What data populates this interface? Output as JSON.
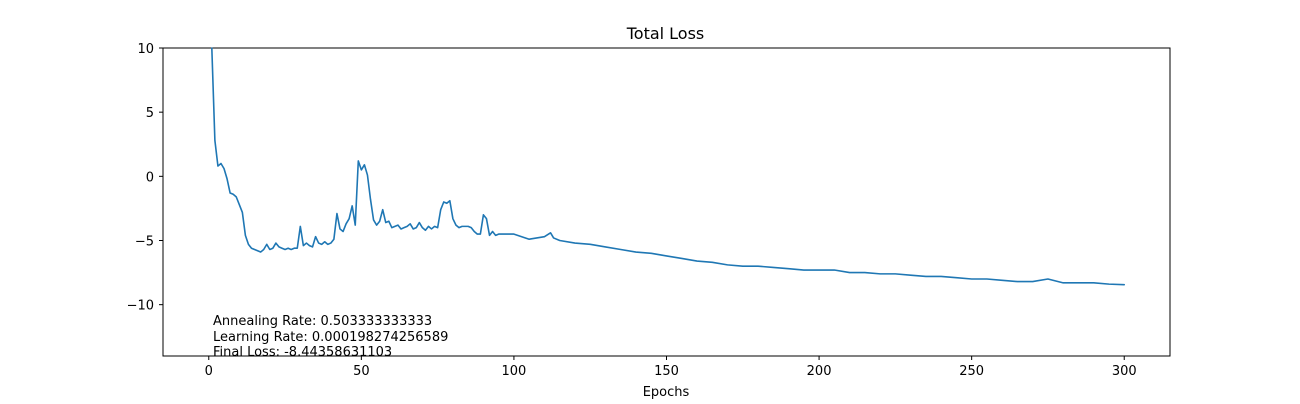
{
  "chart_data": {
    "type": "line",
    "title": "Total Loss",
    "xlabel": "Epochs",
    "ylabel": "",
    "xlim": [
      -15,
      315
    ],
    "ylim": [
      -14,
      10
    ],
    "xticks": [
      0,
      50,
      100,
      150,
      200,
      250,
      300
    ],
    "yticks": [
      -10,
      -5,
      0,
      5,
      10
    ],
    "grid": false,
    "line_color": "#1f77b4",
    "annotations": [
      "Annealing Rate: 0.503333333333",
      "Learning Rate: 0.000198274256589",
      "Final Loss: -8.44358631103"
    ],
    "series": [
      {
        "x": [
          1,
          2,
          3,
          4,
          5,
          6,
          7,
          8,
          9,
          10,
          11,
          12,
          13,
          14,
          15,
          16,
          17,
          18,
          19,
          20,
          21,
          22,
          23,
          24,
          25,
          26,
          27,
          28,
          29,
          30,
          31,
          32,
          33,
          34,
          35,
          36,
          37,
          38,
          39,
          40,
          41,
          42,
          43,
          44,
          45,
          46,
          47,
          48,
          49,
          50,
          51,
          52,
          53,
          54,
          55,
          56,
          57,
          58,
          59,
          60,
          61,
          62,
          63,
          64,
          65,
          66,
          67,
          68,
          69,
          70,
          71,
          72,
          73,
          74,
          75,
          76,
          77,
          78,
          79,
          80,
          81,
          82,
          83,
          84,
          85,
          86,
          87,
          88,
          89,
          90,
          91,
          92,
          93,
          94,
          95,
          100,
          105,
          110,
          112,
          113,
          115,
          120,
          125,
          130,
          135,
          140,
          145,
          150,
          155,
          160,
          165,
          170,
          175,
          180,
          185,
          190,
          195,
          200,
          205,
          210,
          215,
          220,
          225,
          230,
          235,
          240,
          245,
          250,
          255,
          260,
          265,
          270,
          275,
          280,
          285,
          290,
          295,
          300
        ],
        "values": [
          10.0,
          2.8,
          0.8,
          1.0,
          0.6,
          -0.2,
          -1.3,
          -1.4,
          -1.6,
          -2.2,
          -2.8,
          -4.6,
          -5.3,
          -5.6,
          -5.7,
          -5.8,
          -5.9,
          -5.7,
          -5.3,
          -5.7,
          -5.6,
          -5.2,
          -5.5,
          -5.6,
          -5.7,
          -5.6,
          -5.7,
          -5.6,
          -5.6,
          -3.9,
          -5.4,
          -5.2,
          -5.4,
          -5.5,
          -4.7,
          -5.2,
          -5.3,
          -5.1,
          -5.3,
          -5.2,
          -4.9,
          -2.9,
          -4.1,
          -4.3,
          -3.7,
          -3.3,
          -2.3,
          -3.8,
          1.2,
          0.5,
          0.9,
          0.1,
          -1.8,
          -3.4,
          -3.8,
          -3.5,
          -2.6,
          -3.6,
          -3.5,
          -4.0,
          -3.9,
          -3.8,
          -4.1,
          -4.0,
          -3.9,
          -3.7,
          -4.1,
          -4.0,
          -3.6,
          -4.0,
          -4.2,
          -3.9,
          -4.1,
          -3.9,
          -4.0,
          -2.6,
          -2.0,
          -2.1,
          -1.9,
          -3.3,
          -3.8,
          -4.0,
          -3.9,
          -3.9,
          -3.9,
          -4.0,
          -4.3,
          -4.5,
          -4.5,
          -3.0,
          -3.3,
          -4.6,
          -4.3,
          -4.6,
          -4.5,
          -4.5,
          -4.9,
          -4.7,
          -4.4,
          -4.8,
          -5.0,
          -5.2,
          -5.3,
          -5.5,
          -5.7,
          -5.9,
          -6.0,
          -6.2,
          -6.4,
          -6.6,
          -6.7,
          -6.9,
          -7.0,
          -7.0,
          -7.1,
          -7.2,
          -7.3,
          -7.3,
          -7.3,
          -7.5,
          -7.5,
          -7.6,
          -7.6,
          -7.7,
          -7.8,
          -7.8,
          -7.9,
          -8.0,
          -8.0,
          -8.1,
          -8.2,
          -8.2,
          -8.0,
          -8.3,
          -8.3,
          -8.3,
          -8.4,
          -8.44
        ]
      }
    ]
  }
}
